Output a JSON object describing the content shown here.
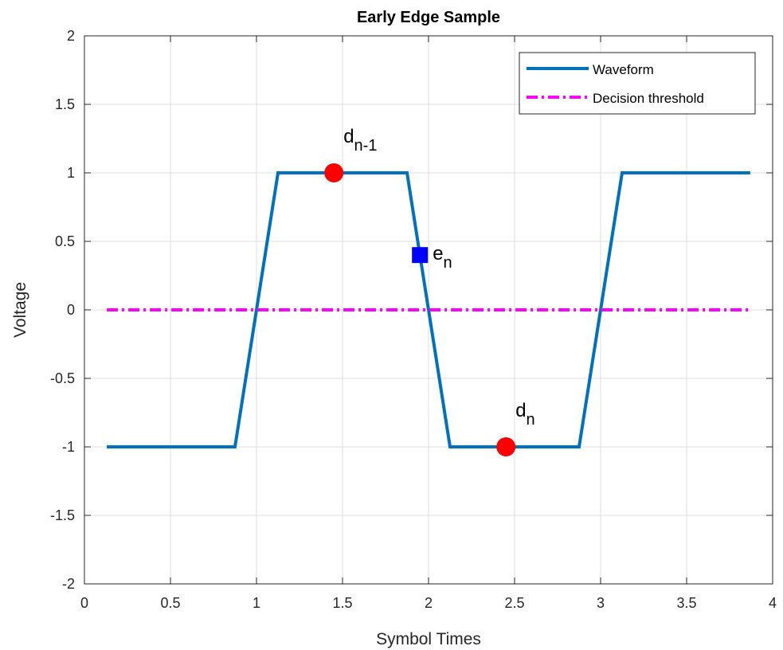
{
  "chart_data": {
    "type": "line",
    "title": "Early Edge Sample",
    "xlabel": "Symbol Times",
    "ylabel": "Voltage",
    "xlim": [
      0,
      4
    ],
    "ylim": [
      -2,
      2
    ],
    "xticks": [
      0,
      0.5,
      1,
      1.5,
      2,
      2.5,
      3,
      3.5,
      4
    ],
    "xtick_labels": [
      "0",
      "0.5",
      "1",
      "1.5",
      "2",
      "2.5",
      "3",
      "3.5",
      "4"
    ],
    "yticks": [
      -2,
      -1.5,
      -1,
      -0.5,
      0,
      0.5,
      1,
      1.5,
      2
    ],
    "ytick_labels": [
      "-2",
      "-1.5",
      "-1",
      "-0.5",
      "0",
      "0.5",
      "1",
      "1.5",
      "2"
    ],
    "grid": true,
    "legend_position": "top-right",
    "series": [
      {
        "name": "Waveform",
        "color": "#0072BD",
        "style": "solid",
        "x": [
          0.13,
          0.875,
          1.125,
          1.875,
          2.125,
          2.875,
          3.125,
          3.87
        ],
        "y": [
          -1,
          -1,
          1,
          1,
          -1,
          -1,
          1,
          1
        ]
      },
      {
        "name": "Decision threshold",
        "color": "#FF00FF",
        "style": "dash-dot",
        "x": [
          0.13,
          3.87
        ],
        "y": [
          0,
          0
        ]
      }
    ],
    "markers": [
      {
        "shape": "circle",
        "color": "#FF0000",
        "x": 1.45,
        "y": 1,
        "label": "d",
        "sub": "n-1"
      },
      {
        "shape": "circle",
        "color": "#FF0000",
        "x": 2.45,
        "y": -1,
        "label": "d",
        "sub": "n"
      },
      {
        "shape": "square",
        "color": "#0000FF",
        "x": 1.95,
        "y": 0.4,
        "label": "e",
        "sub": "n"
      }
    ]
  }
}
